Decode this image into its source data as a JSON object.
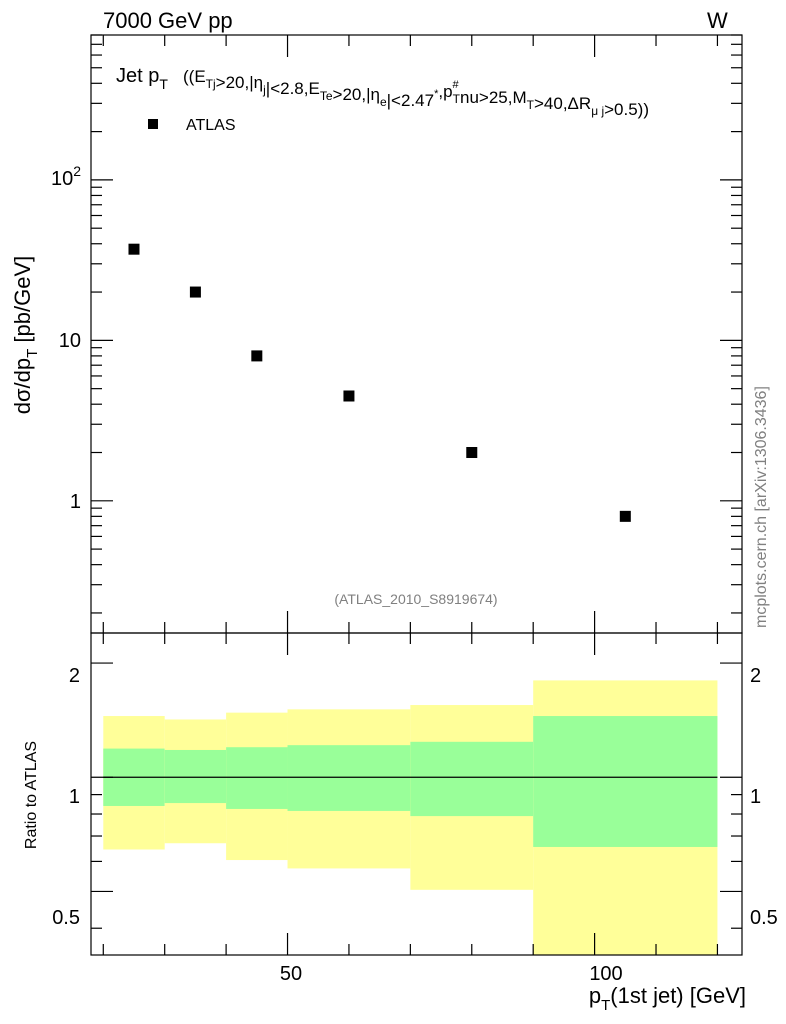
{
  "header": {
    "left": "7000 GeV pp",
    "right": "W"
  },
  "watermark": {
    "side": "mcplots.cern.ch [arXiv:1306.3436]",
    "analysis": "(ATLAS_2010_S8919674)"
  },
  "plot_title": {
    "main": "Jet p",
    "main_sub": "T",
    "cuts_text": "((E",
    "segments": [
      {
        "t": "((E",
        "s": "Tj"
      },
      {
        "t": ">20,|η",
        "s": "j"
      },
      {
        "t": "|<2.8,E",
        "s": "Te"
      },
      {
        "t": ">20,|η",
        "s": "e"
      },
      {
        "t": "|<2.47",
        "sup": "*"
      },
      {
        "t": ",p",
        "s": "T",
        "sup": "#"
      },
      {
        "t": "nu>25,M",
        "s": "T"
      },
      {
        "t": ">40,ΔR",
        "s": "μ j"
      },
      {
        "t": ">0.5))"
      }
    ]
  },
  "colors": {
    "marker": "#000000",
    "band_outer": "#ffff99",
    "band_inner": "#99ff99",
    "axis": "#000000",
    "watermark": "#808080"
  },
  "chart_data": [
    {
      "type": "scatter",
      "panel": "main",
      "title": "Jet pT",
      "ylabel": "dσ/dp_T [pb/GeV]",
      "yscale": "log",
      "xlim": [
        18,
        124
      ],
      "ylim": [
        0.15,
        800
      ],
      "ytick_labels": [
        "1",
        "10",
        "10^2"
      ],
      "legend": {
        "entries": [
          "ATLAS"
        ],
        "placement": "top-left"
      },
      "series": [
        {
          "name": "ATLAS",
          "x": [
            25,
            35,
            45,
            60,
            80,
            105
          ],
          "values": [
            37,
            20,
            8,
            4.5,
            2,
            0.8
          ]
        }
      ]
    },
    {
      "type": "area",
      "panel": "ratio",
      "ylabel": "Ratio to ATLAS",
      "yscale": "log",
      "xlabel": "p_T(1st jet) [GeV]",
      "xlim": [
        18,
        124
      ],
      "ylim": [
        0.34,
        2.4
      ],
      "xtick_labels": [
        "50",
        "100"
      ],
      "ytick_labels": [
        "0.5",
        "1",
        "2"
      ],
      "reference_line": 1,
      "bins": [
        {
          "xlo": 20,
          "xhi": 30,
          "inner": [
            0.84,
            1.19
          ],
          "outer": [
            0.645,
            1.45
          ]
        },
        {
          "xlo": 30,
          "xhi": 40,
          "inner": [
            0.855,
            1.18
          ],
          "outer": [
            0.67,
            1.42
          ]
        },
        {
          "xlo": 40,
          "xhi": 50,
          "inner": [
            0.825,
            1.2
          ],
          "outer": [
            0.605,
            1.48
          ]
        },
        {
          "xlo": 50,
          "xhi": 70,
          "inner": [
            0.815,
            1.215
          ],
          "outer": [
            0.575,
            1.51
          ]
        },
        {
          "xlo": 70,
          "xhi": 90,
          "inner": [
            0.79,
            1.24
          ],
          "outer": [
            0.505,
            1.55
          ]
        },
        {
          "xlo": 90,
          "xhi": 120,
          "inner": [
            0.655,
            1.45
          ],
          "outer": [
            0.34,
            1.8
          ]
        }
      ]
    }
  ]
}
